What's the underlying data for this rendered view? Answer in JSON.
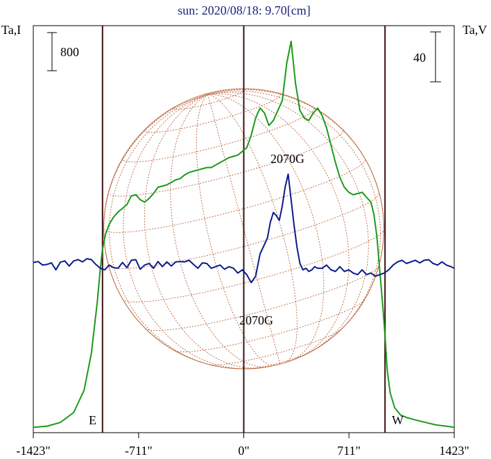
{
  "title": "sun: 2020/08/18: 9.70[cm]",
  "left_axis_label": "Ta,I",
  "right_axis_label": "Ta,V",
  "left_scale_label": "800",
  "right_scale_label": "40",
  "east_label": "E",
  "west_label": "W",
  "upper_annotation": "2070G",
  "lower_annotation": "2070G",
  "colors": {
    "intensity": "#1a9a1a",
    "polarization": "#0a1a8c",
    "disk": "#b8623a",
    "limb_lines": "#3a1010"
  },
  "chart_data": {
    "type": "line",
    "x_unit": "arcsec",
    "xlim": [
      -1423,
      1423
    ],
    "x_ticks": [
      -1423,
      -711,
      0,
      711,
      1423
    ],
    "x_tick_labels": [
      "-1423\"",
      "-711\"",
      "0\"",
      "711\"",
      "1423\""
    ],
    "limb_positions": [
      -955,
      0,
      955
    ],
    "series": [
      {
        "key": "intensity",
        "scale_bar": 800,
        "x": [
          -1423,
          -1330,
          -1240,
          -1150,
          -1080,
          -1030,
          -990,
          -970,
          -955,
          -935,
          -910,
          -880,
          -850,
          -820,
          -790,
          -760,
          -730,
          -700,
          -670,
          -640,
          -610,
          -580,
          -550,
          -520,
          -490,
          -460,
          -430,
          -400,
          -370,
          -340,
          -310,
          -280,
          -250,
          -220,
          -190,
          -160,
          -130,
          -100,
          -70,
          -40,
          -10,
          20,
          50,
          80,
          110,
          140,
          170,
          200,
          230,
          260,
          290,
          320,
          350,
          380,
          410,
          440,
          470,
          500,
          530,
          560,
          590,
          620,
          650,
          680,
          710,
          740,
          770,
          800,
          830,
          860,
          880,
          900,
          920,
          940,
          955,
          970,
          990,
          1020,
          1060,
          1100,
          1160,
          1230,
          1300,
          1370,
          1423
        ],
        "values": [
          10,
          15,
          30,
          70,
          160,
          310,
          520,
          650,
          730,
          790,
          830,
          860,
          880,
          895,
          910,
          945,
          950,
          930,
          920,
          935,
          955,
          980,
          985,
          990,
          1000,
          1010,
          1015,
          1030,
          1040,
          1045,
          1050,
          1055,
          1060,
          1060,
          1070,
          1080,
          1090,
          1100,
          1105,
          1110,
          1125,
          1140,
          1190,
          1260,
          1300,
          1280,
          1230,
          1250,
          1290,
          1330,
          1480,
          1570,
          1400,
          1290,
          1260,
          1250,
          1280,
          1300,
          1270,
          1220,
          1150,
          1080,
          1020,
          980,
          960,
          950,
          955,
          960,
          940,
          920,
          870,
          780,
          640,
          500,
          380,
          240,
          150,
          90,
          60,
          50,
          40,
          30,
          20,
          15,
          10
        ]
      },
      {
        "key": "polarization",
        "scale_bar": 40,
        "x": [
          -1423,
          -1390,
          -1360,
          -1330,
          -1300,
          -1270,
          -1240,
          -1210,
          -1180,
          -1150,
          -1120,
          -1090,
          -1060,
          -1030,
          -1000,
          -970,
          -940,
          -910,
          -880,
          -850,
          -820,
          -790,
          -760,
          -730,
          -700,
          -670,
          -640,
          -610,
          -580,
          -550,
          -520,
          -490,
          -460,
          -430,
          -400,
          -370,
          -340,
          -310,
          -280,
          -250,
          -220,
          -190,
          -160,
          -130,
          -100,
          -70,
          -40,
          -10,
          20,
          50,
          80,
          110,
          140,
          160,
          180,
          200,
          220,
          240,
          260,
          280,
          300,
          320,
          340,
          360,
          380,
          400,
          420,
          440,
          460,
          480,
          500,
          530,
          560,
          590,
          620,
          650,
          680,
          710,
          740,
          770,
          800,
          830,
          860,
          890,
          920,
          950,
          980,
          1010,
          1040,
          1070,
          1100,
          1130,
          1160,
          1190,
          1220,
          1250,
          1280,
          1310,
          1340,
          1370,
          1400,
          1423
        ],
        "values": [
          0.3,
          0.6,
          -0.5,
          -0.3,
          0.2,
          -2.0,
          0.4,
          0.8,
          -0.8,
          0.8,
          1.2,
          0.5,
          1.5,
          1.2,
          -0.3,
          -1.5,
          -2.0,
          -0.5,
          -1.3,
          -1.5,
          0.3,
          -1.3,
          1.0,
          1.2,
          -1.8,
          -0.5,
          0,
          -1.5,
          0.6,
          -1.0,
          0.5,
          -0.8,
          0.5,
          0.6,
          0.5,
          1.0,
          -0.3,
          -1.5,
          0.2,
          0,
          -1.5,
          -1.0,
          -0.5,
          -1.8,
          -1.0,
          -1.5,
          -3.0,
          -2.0,
          -3.5,
          -6.0,
          -4.0,
          3.0,
          6.0,
          8.0,
          13.0,
          16.0,
          15.0,
          13.5,
          18.0,
          24.0,
          28.0,
          20.0,
          12.0,
          5.0,
          0,
          -2.0,
          -1.5,
          -2.5,
          -2.0,
          -1.0,
          -1.5,
          -1.5,
          -0.5,
          -2.0,
          -2.5,
          -1.0,
          -2.5,
          -2.0,
          -3.0,
          -3.5,
          -2.0,
          -3.5,
          -3.0,
          -4.0,
          -3.5,
          -3.0,
          -2.0,
          -0.5,
          0.5,
          1.0,
          0,
          0.5,
          1.0,
          0.2,
          1.0,
          1.2,
          0,
          -0.5,
          0.5,
          -0.5,
          -1.0,
          -1.5
        ]
      }
    ]
  }
}
